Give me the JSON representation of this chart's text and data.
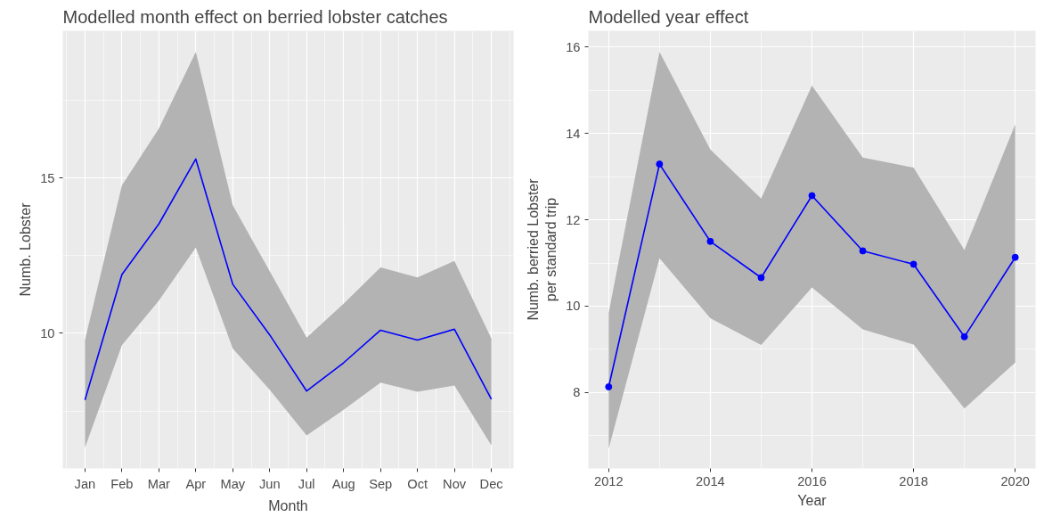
{
  "chart_data": [
    {
      "type": "line",
      "title": "Modelled month effect on berried lobster catches",
      "xlabel": "Month",
      "ylabel": "Numb. Lobster",
      "categories": [
        "Jan",
        "Feb",
        "Mar",
        "Apr",
        "May",
        "Jun",
        "Jul",
        "Aug",
        "Sep",
        "Oct",
        "Nov",
        "Dec"
      ],
      "series": [
        {
          "color": "#0000ff",
          "values": [
            7.85,
            11.89,
            13.52,
            15.61,
            11.58,
            9.95,
            8.14,
            9.05,
            10.1,
            9.78,
            10.13,
            7.88
          ],
          "lower": [
            6.32,
            9.62,
            11.05,
            12.76,
            9.51,
            8.18,
            6.71,
            7.54,
            8.41,
            8.12,
            8.32,
            6.39
          ],
          "upper": [
            9.78,
            14.76,
            16.59,
            19.06,
            14.12,
            12.0,
            9.86,
            10.95,
            12.12,
            11.8,
            12.33,
            9.83
          ]
        }
      ],
      "ylim": [
        5.65,
        19.74
      ],
      "yticks": [
        10,
        15
      ],
      "grid": true,
      "marker": "none",
      "line_style": "solid"
    },
    {
      "type": "line",
      "title": "Modelled year effect",
      "xlabel": "Year",
      "ylabel": "Numb. berried Lobster\nper standard trip",
      "x": [
        2012,
        2013,
        2014,
        2015,
        2016,
        2017,
        2018,
        2019,
        2020
      ],
      "series": [
        {
          "color": "#0000ff",
          "values": [
            8.13,
            13.29,
            11.5,
            10.66,
            12.56,
            11.28,
            10.97,
            9.29,
            11.13
          ],
          "lower": [
            6.7,
            11.11,
            9.72,
            9.1,
            10.43,
            9.46,
            9.11,
            7.63,
            8.69
          ],
          "upper": [
            9.85,
            15.89,
            13.63,
            12.49,
            15.11,
            13.44,
            13.21,
            11.3,
            14.21
          ]
        }
      ],
      "xlim": [
        2011.6,
        2020.4
      ],
      "xticks": [
        2012,
        2014,
        2016,
        2018,
        2020
      ],
      "ylim": [
        6.24,
        16.38
      ],
      "yticks": [
        8,
        10,
        12,
        14,
        16
      ],
      "grid": true,
      "marker": "circle",
      "line_style": "solid"
    }
  ]
}
